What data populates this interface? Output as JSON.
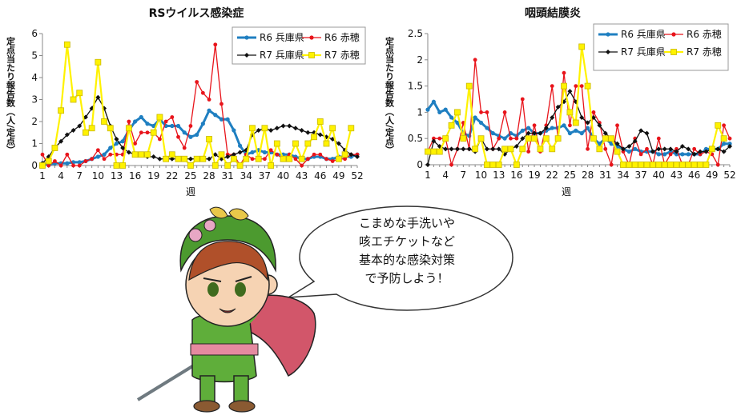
{
  "colors": {
    "r6_hyogo": "#1F7FC1",
    "r6_ako": "#E8141B",
    "r7_hyogo": "#111111",
    "r7_ako": "#FFF200",
    "r7_ako_marker_edge": "#C9B800"
  },
  "chart_data": [
    {
      "type": "line",
      "title": "RSウイルス感染症",
      "xlabel": "週",
      "ylabel": "定点当たり報告数（人/定点）",
      "x": [
        1,
        2,
        3,
        4,
        5,
        6,
        7,
        8,
        9,
        10,
        11,
        12,
        13,
        14,
        15,
        16,
        17,
        18,
        19,
        20,
        21,
        22,
        23,
        24,
        25,
        26,
        27,
        28,
        29,
        30,
        31,
        32,
        33,
        34,
        35,
        36,
        37,
        38,
        39,
        40,
        41,
        42,
        43,
        44,
        45,
        46,
        47,
        48,
        49,
        50,
        51,
        52
      ],
      "xticks": [
        1,
        4,
        7,
        10,
        13,
        16,
        19,
        22,
        25,
        28,
        31,
        34,
        37,
        40,
        43,
        46,
        49,
        52
      ],
      "ylim": [
        0,
        6
      ],
      "yticks": [
        "0",
        "1",
        "2",
        "3",
        "4",
        "5",
        "6"
      ],
      "legend": "top-right",
      "grid": false,
      "series": [
        {
          "name": "R6 兵庫県",
          "color_key": "r6_hyogo",
          "values": [
            0.1,
            0.05,
            0.1,
            0.1,
            0.1,
            0.15,
            0.15,
            0.2,
            0.3,
            0.4,
            0.5,
            0.8,
            1.0,
            1.1,
            1.6,
            2.0,
            2.2,
            1.9,
            1.8,
            2.1,
            1.8,
            1.8,
            1.8,
            1.5,
            1.3,
            1.4,
            1.9,
            2.5,
            2.3,
            2.1,
            2.1,
            1.6,
            0.9,
            0.5,
            0.6,
            0.7,
            0.6,
            0.6,
            0.5,
            0.5,
            0.5,
            0.4,
            0.3,
            0.3,
            0.4,
            0.4,
            0.3,
            0.3,
            0.4,
            0.4,
            0.4,
            0.5
          ]
        },
        {
          "name": "R6 赤穂",
          "color_key": "r6_ako",
          "values": [
            0.5,
            0,
            0.2,
            0,
            0.5,
            0,
            0,
            0.2,
            0.3,
            0.7,
            0.3,
            0.5,
            0.5,
            0.5,
            2.0,
            1.0,
            1.5,
            1.5,
            1.5,
            1.2,
            2.0,
            2.2,
            1.3,
            0.8,
            1.8,
            3.8,
            3.3,
            3.0,
            5.5,
            2.8,
            0.5,
            0.5,
            0,
            0.5,
            0.3,
            0.3,
            0.3,
            0.7,
            0.5,
            0.3,
            0.5,
            0.3,
            0,
            0.3,
            0.5,
            0.5,
            0.3,
            0.2,
            0.3,
            0.3,
            0.5,
            0.5
          ]
        },
        {
          "name": "R7 兵庫県",
          "color_key": "r7_hyogo",
          "values": [
            0.1,
            0.4,
            0.8,
            1.1,
            1.4,
            1.6,
            1.8,
            2.2,
            2.6,
            3.1,
            2.6,
            1.8,
            1.2,
            0.8,
            0.6,
            0.5,
            0.5,
            0.4,
            0.4,
            0.3,
            0.3,
            0.3,
            0.3,
            0.3,
            0.3,
            0.3,
            0.3,
            0.3,
            0.5,
            0.3,
            0.4,
            0.5,
            0.6,
            0.7,
            1.4,
            1.6,
            1.7,
            1.6,
            1.7,
            1.8,
            1.8,
            1.7,
            1.6,
            1.5,
            1.5,
            1.4,
            1.3,
            1.2,
            1.0,
            0.7,
            0.5,
            0.4
          ]
        },
        {
          "name": "R7 赤穂",
          "color_key": "r7_ako",
          "values": [
            0,
            0.2,
            0.8,
            2.5,
            5.5,
            3.0,
            3.3,
            1.5,
            1.7,
            4.7,
            2.0,
            1.7,
            0,
            0,
            1.7,
            0.5,
            0.5,
            0.5,
            1.5,
            2.2,
            0.3,
            0.5,
            0.3,
            0.3,
            0,
            0.3,
            0.3,
            1.2,
            0,
            0.5,
            0,
            0.3,
            0,
            0.3,
            1.7,
            0.3,
            1.7,
            0,
            1.0,
            0.3,
            0.3,
            1.0,
            0.3,
            1.0,
            1.3,
            2.0,
            1.0,
            1.7,
            0.3,
            0.5,
            1.7,
            null
          ]
        }
      ]
    },
    {
      "type": "line",
      "title": "咽頭結膜炎",
      "xlabel": "週",
      "ylabel": "定点当たり報告数（人/定点）",
      "x": [
        1,
        2,
        3,
        4,
        5,
        6,
        7,
        8,
        9,
        10,
        11,
        12,
        13,
        14,
        15,
        16,
        17,
        18,
        19,
        20,
        21,
        22,
        23,
        24,
        25,
        26,
        27,
        28,
        29,
        30,
        31,
        32,
        33,
        34,
        35,
        36,
        37,
        38,
        39,
        40,
        41,
        42,
        43,
        44,
        45,
        46,
        47,
        48,
        49,
        50,
        51,
        52
      ],
      "xticks": [
        1,
        4,
        7,
        10,
        13,
        16,
        19,
        22,
        25,
        28,
        31,
        34,
        37,
        40,
        43,
        46,
        49,
        52
      ],
      "ylim": [
        0,
        2.5
      ],
      "yticks": [
        "0",
        "0.5",
        "1",
        "1.5",
        "2",
        "2.5"
      ],
      "legend": "top-right",
      "grid": false,
      "series": [
        {
          "name": "R6 兵庫県",
          "color_key": "r6_hyogo",
          "values": [
            1.05,
            1.2,
            1.0,
            1.05,
            0.9,
            0.8,
            0.6,
            0.55,
            0.9,
            0.8,
            0.7,
            0.6,
            0.55,
            0.5,
            0.6,
            0.55,
            0.65,
            0.7,
            0.6,
            0.6,
            0.65,
            0.7,
            0.7,
            0.75,
            0.6,
            0.65,
            0.6,
            0.7,
            0.5,
            0.4,
            0.5,
            0.4,
            0.35,
            0.3,
            0.25,
            0.3,
            0.25,
            0.25,
            0.25,
            0.2,
            0.2,
            0.25,
            0.2,
            0.2,
            0.2,
            0.2,
            0.2,
            0.3,
            0.3,
            0.3,
            0.4,
            0.4
          ]
        },
        {
          "name": "R6 赤穂",
          "color_key": "r6_ako",
          "values": [
            0.25,
            0.5,
            0.5,
            0.5,
            0,
            0.3,
            0.8,
            0.3,
            2.0,
            1.0,
            1.0,
            0.3,
            0.5,
            1.0,
            0.5,
            0.5,
            1.25,
            0.25,
            0.75,
            0.25,
            0.75,
            1.5,
            0.5,
            1.75,
            0.75,
            1.5,
            1.5,
            0.3,
            1.0,
            0.8,
            0.3,
            0,
            0.75,
            0.25,
            0,
            0.5,
            0.2,
            0.3,
            0,
            0.5,
            0,
            0.2,
            0.3,
            0,
            0,
            0.3,
            0.2,
            0.25,
            0.2,
            0,
            0.75,
            0.5
          ]
        },
        {
          "name": "R7 兵庫県",
          "color_key": "r7_hyogo",
          "values": [
            0,
            0.45,
            0.35,
            0.3,
            0.3,
            0.3,
            0.3,
            0.3,
            0.25,
            0.5,
            0.3,
            0.3,
            0.3,
            0.2,
            0.3,
            0.35,
            0.5,
            0.6,
            0.6,
            0.6,
            0.7,
            0.9,
            1.1,
            1.2,
            1.4,
            1.2,
            0.9,
            0.8,
            0.9,
            0.75,
            0.6,
            0.5,
            0.4,
            0.3,
            0.35,
            0.45,
            0.65,
            0.6,
            0.25,
            0.3,
            0.3,
            0.3,
            0.25,
            0.35,
            0.3,
            0.2,
            0.25,
            0.25,
            0.3,
            0.3,
            0.25,
            0.35
          ]
        },
        {
          "name": "R7 赤穂",
          "color_key": "r7_ako",
          "values": [
            0.25,
            0.25,
            0.25,
            0.5,
            0.75,
            1.0,
            0.5,
            1.5,
            0.3,
            0.5,
            0,
            0,
            0,
            0.3,
            0.3,
            0,
            0.3,
            0.5,
            0.5,
            0.3,
            0.5,
            0.3,
            0.5,
            1.5,
            1.0,
            0.8,
            2.25,
            1.5,
            0.5,
            0.3,
            0.5,
            0.5,
            0.25,
            0,
            0,
            0,
            0,
            0,
            0,
            0,
            0,
            0,
            0,
            0,
            0,
            0,
            0,
            0,
            0.3,
            0.75,
            0.5,
            null
          ]
        }
      ]
    }
  ],
  "speech_bubble": {
    "lines": [
      "こまめな手洗いや",
      "咳エチケットなど",
      "基本的な感染対策",
      "で予防しよう！"
    ]
  }
}
